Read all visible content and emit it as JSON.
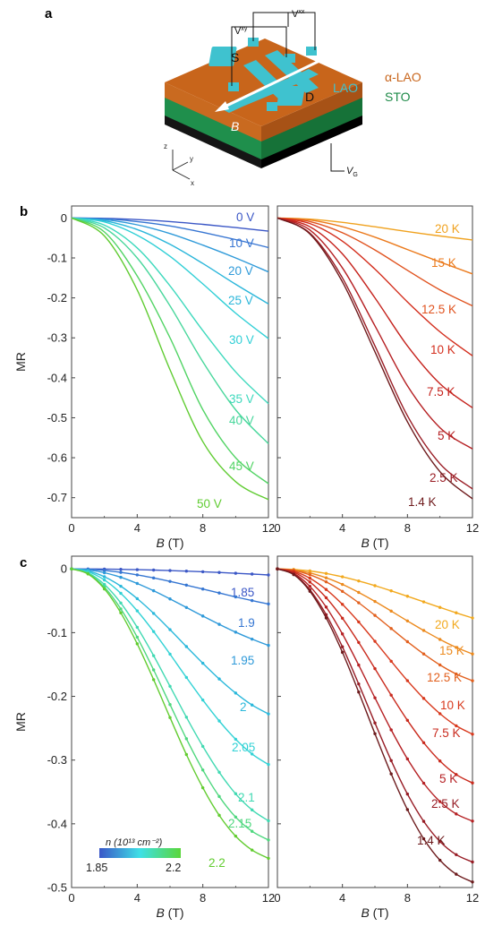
{
  "panel_letters": {
    "a": "a",
    "b": "b",
    "c": "c"
  },
  "schematic": {
    "source_label": "S",
    "drain_label": "D",
    "vxy_label": "V",
    "vxy_sup": "xy",
    "vxx_label": "V",
    "vxx_sup": "xx",
    "lao_label": "LAO",
    "alao_label": "α-LAO",
    "sto_label": "STO",
    "field_label": "B",
    "gate_label": "V",
    "gate_sub": "G",
    "axis_z": "z",
    "axis_y": "y",
    "axis_x": "x",
    "colors": {
      "alao": "#c8651b",
      "sto": "#1e8a48",
      "bar": "#3fc2cf",
      "base": "#151515"
    }
  },
  "colorbar": {
    "title": "n (10¹³ cm⁻²)",
    "min_label": "1.85",
    "max_label": "2.2",
    "colors": [
      "#3a56c8",
      "#3ee0e6",
      "#5ad63a"
    ]
  },
  "chart_data": [
    {
      "id": "b-left",
      "type": "line",
      "xlabel_italic": "B",
      "xlabel_unit": " (T)",
      "ylabel": "MR",
      "xlim": [
        0,
        12
      ],
      "ylim": [
        -0.75,
        0.03
      ],
      "xticks": [
        "0",
        "4",
        "8",
        "12"
      ],
      "xtick_values": [
        0,
        4,
        8,
        12
      ],
      "yticks": [
        "0",
        "-0.1",
        "-0.2",
        "-0.3",
        "-0.4",
        "-0.5",
        "-0.6",
        "-0.7"
      ],
      "ytick_values": [
        0,
        -0.1,
        -0.2,
        -0.3,
        -0.4,
        -0.5,
        -0.6,
        -0.7
      ],
      "markers": false,
      "series": [
        {
          "name": "0 V",
          "color": "#3b57c6",
          "x": [
            0,
            2,
            4,
            6,
            8,
            10,
            12
          ],
          "y": [
            0,
            -0.001,
            -0.004,
            -0.009,
            -0.016,
            -0.024,
            -0.033
          ]
        },
        {
          "name": "10 V",
          "color": "#3775d2",
          "x": [
            0,
            2,
            4,
            6,
            8,
            10,
            12
          ],
          "y": [
            0,
            -0.002,
            -0.009,
            -0.02,
            -0.036,
            -0.054,
            -0.074
          ]
        },
        {
          "name": "20 V",
          "color": "#2f9ad9",
          "x": [
            0,
            2,
            4,
            6,
            8,
            10,
            12
          ],
          "y": [
            0,
            -0.004,
            -0.017,
            -0.039,
            -0.068,
            -0.1,
            -0.135
          ]
        },
        {
          "name": "25 V",
          "color": "#2ab6da",
          "x": [
            0,
            2,
            4,
            6,
            8,
            10,
            12
          ],
          "y": [
            0,
            -0.007,
            -0.029,
            -0.066,
            -0.114,
            -0.166,
            -0.215
          ]
        },
        {
          "name": "30 V",
          "color": "#30cfd6",
          "x": [
            0,
            2,
            4,
            6,
            8,
            10,
            12
          ],
          "y": [
            0,
            -0.01,
            -0.043,
            -0.096,
            -0.165,
            -0.238,
            -0.302
          ]
        },
        {
          "name": "35 V",
          "color": "#3ed9bd",
          "x": [
            0,
            2,
            4,
            6,
            8,
            10,
            12
          ],
          "y": [
            0,
            -0.018,
            -0.075,
            -0.17,
            -0.282,
            -0.385,
            -0.465
          ]
        },
        {
          "name": "40 V",
          "color": "#49d79c",
          "x": [
            0,
            2,
            4,
            6,
            8,
            10,
            12
          ],
          "y": [
            0,
            -0.025,
            -0.1,
            -0.22,
            -0.36,
            -0.48,
            -0.565
          ]
        },
        {
          "name": "45 V",
          "color": "#52d465",
          "x": [
            0,
            2,
            4,
            6,
            8,
            10,
            12
          ],
          "y": [
            0,
            -0.035,
            -0.145,
            -0.3,
            -0.48,
            -0.6,
            -0.665
          ]
        },
        {
          "name": "50 V",
          "color": "#60cc32",
          "x": [
            0,
            2,
            4,
            6,
            8,
            10,
            12
          ],
          "y": [
            0,
            -0.045,
            -0.18,
            -0.38,
            -0.56,
            -0.66,
            -0.705
          ]
        }
      ]
    },
    {
      "id": "b-right",
      "type": "line",
      "xlabel_italic": "B",
      "xlabel_unit": " (T)",
      "ylabel": "",
      "xlim": [
        0,
        12
      ],
      "ylim": [
        -0.75,
        0.03
      ],
      "xticks": [
        "0",
        "4",
        "8",
        "12"
      ],
      "xtick_values": [
        0,
        4,
        8,
        12
      ],
      "yticks": [],
      "ytick_values": [
        0,
        -0.1,
        -0.2,
        -0.3,
        -0.4,
        -0.5,
        -0.6,
        -0.7
      ],
      "markers": false,
      "series": [
        {
          "name": "20 K",
          "color": "#f0a21f",
          "x": [
            0,
            2,
            4,
            6,
            8,
            10,
            12
          ],
          "y": [
            0,
            -0.003,
            -0.011,
            -0.022,
            -0.034,
            -0.045,
            -0.055
          ]
        },
        {
          "name": "15 K",
          "color": "#eb7a1c",
          "x": [
            0,
            2,
            4,
            6,
            8,
            10,
            12
          ],
          "y": [
            0,
            -0.005,
            -0.022,
            -0.048,
            -0.079,
            -0.11,
            -0.14
          ]
        },
        {
          "name": "12.5 K",
          "color": "#e0521e",
          "x": [
            0,
            2,
            4,
            6,
            8,
            10,
            12
          ],
          "y": [
            0,
            -0.009,
            -0.037,
            -0.08,
            -0.131,
            -0.18,
            -0.22
          ]
        },
        {
          "name": "10 K",
          "color": "#d32d1c",
          "x": [
            0,
            2,
            4,
            6,
            8,
            10,
            12
          ],
          "y": [
            0,
            -0.014,
            -0.058,
            -0.128,
            -0.21,
            -0.285,
            -0.345
          ]
        },
        {
          "name": "7.5 K",
          "color": "#c5221c",
          "x": [
            0,
            2,
            4,
            6,
            8,
            10,
            12
          ],
          "y": [
            0,
            -0.022,
            -0.09,
            -0.2,
            -0.32,
            -0.415,
            -0.475
          ]
        },
        {
          "name": "5 K",
          "color": "#b51f22",
          "x": [
            0,
            2,
            4,
            6,
            8,
            10,
            12
          ],
          "y": [
            0,
            -0.03,
            -0.125,
            -0.27,
            -0.42,
            -0.525,
            -0.578
          ]
        },
        {
          "name": "2.5 K",
          "color": "#9a1d25",
          "x": [
            0,
            2,
            4,
            6,
            8,
            10,
            12
          ],
          "y": [
            0,
            -0.038,
            -0.15,
            -0.32,
            -0.495,
            -0.615,
            -0.678
          ]
        },
        {
          "name": "1.4 K",
          "color": "#6e1a1c",
          "x": [
            0,
            2,
            4,
            6,
            8,
            10,
            12
          ],
          "y": [
            0,
            -0.04,
            -0.16,
            -0.335,
            -0.51,
            -0.635,
            -0.703
          ]
        }
      ]
    },
    {
      "id": "c-left",
      "type": "line",
      "xlabel_italic": "B",
      "xlabel_unit": " (T)",
      "ylabel": "MR",
      "xlim": [
        0,
        12
      ],
      "ylim": [
        -0.5,
        0.02
      ],
      "xticks": [
        "0",
        "4",
        "8",
        "12"
      ],
      "xtick_values": [
        0,
        4,
        8,
        12
      ],
      "yticks": [
        "0",
        "-0.1",
        "-0.2",
        "-0.3",
        "-0.4",
        "-0.5"
      ],
      "ytick_values": [
        0,
        -0.1,
        -0.2,
        -0.3,
        -0.4,
        -0.5
      ],
      "markers": true,
      "series": [
        {
          "name": "1.85",
          "color": "#3b57c6",
          "x": [
            0,
            1,
            2,
            3,
            4,
            5,
            6,
            7,
            8,
            9,
            10,
            11,
            12
          ],
          "y": [
            0,
            -0.0001,
            -0.0003,
            -0.0007,
            -0.0012,
            -0.0018,
            -0.0026,
            -0.0035,
            -0.0045,
            -0.0056,
            -0.0068,
            -0.0081,
            -0.0095
          ]
        },
        {
          "name": "1.9",
          "color": "#3576d2",
          "x": [
            0,
            1,
            2,
            3,
            4,
            5,
            6,
            7,
            8,
            9,
            10,
            11,
            12
          ],
          "y": [
            0,
            -0.0006,
            -0.0024,
            -0.0054,
            -0.0094,
            -0.0142,
            -0.0196,
            -0.0255,
            -0.0316,
            -0.0378,
            -0.0439,
            -0.0497,
            -0.055
          ]
        },
        {
          "name": "1.95",
          "color": "#2e99d9",
          "x": [
            0,
            1,
            2,
            3,
            4,
            5,
            6,
            7,
            8,
            9,
            10,
            11,
            12
          ],
          "y": [
            0,
            -0.0015,
            -0.006,
            -0.0132,
            -0.0228,
            -0.0343,
            -0.0471,
            -0.0605,
            -0.074,
            -0.087,
            -0.0992,
            -0.1102,
            -0.12
          ]
        },
        {
          "name": "2",
          "color": "#2ab8db",
          "x": [
            0,
            1,
            2,
            3,
            4,
            5,
            6,
            7,
            8,
            9,
            10,
            11,
            12
          ],
          "y": [
            0,
            -0.0031,
            -0.0123,
            -0.0271,
            -0.0466,
            -0.0698,
            -0.0953,
            -0.1219,
            -0.1481,
            -0.1727,
            -0.1948,
            -0.2136,
            -0.2276
          ]
        },
        {
          "name": "2.05",
          "color": "#32d2d5",
          "x": [
            0,
            1,
            2,
            3,
            4,
            5,
            6,
            7,
            8,
            9,
            10,
            11,
            12
          ],
          "y": [
            0,
            -0.0044,
            -0.0174,
            -0.0383,
            -0.0658,
            -0.0983,
            -0.1338,
            -0.1703,
            -0.2058,
            -0.2386,
            -0.2673,
            -0.2905,
            -0.3069
          ]
        },
        {
          "name": "2.1",
          "color": "#41d9b2",
          "x": [
            0,
            1,
            2,
            3,
            4,
            5,
            6,
            7,
            8,
            9,
            10,
            11,
            12
          ],
          "y": [
            0,
            -0.0061,
            -0.0244,
            -0.0535,
            -0.0916,
            -0.1362,
            -0.1842,
            -0.2327,
            -0.2785,
            -0.3191,
            -0.3528,
            -0.3782,
            -0.3953
          ]
        },
        {
          "name": "2.15",
          "color": "#4ed77e",
          "x": [
            0,
            1,
            2,
            3,
            4,
            5,
            6,
            7,
            8,
            9,
            10,
            11,
            12
          ],
          "y": [
            0,
            -0.0072,
            -0.0287,
            -0.0628,
            -0.1071,
            -0.1585,
            -0.2129,
            -0.2665,
            -0.3156,
            -0.3571,
            -0.3894,
            -0.4118,
            -0.4254
          ]
        },
        {
          "name": "2.2",
          "color": "#62cc30",
          "x": [
            0,
            1,
            2,
            3,
            4,
            5,
            6,
            7,
            8,
            9,
            10,
            11,
            12
          ],
          "y": [
            0,
            -0.0079,
            -0.0314,
            -0.0689,
            -0.1175,
            -0.1738,
            -0.2333,
            -0.2913,
            -0.3435,
            -0.3867,
            -0.4193,
            -0.4412,
            -0.4542
          ]
        }
      ]
    },
    {
      "id": "c-right",
      "type": "line",
      "xlabel_italic": "B",
      "xlabel_unit": " (T)",
      "ylabel": "",
      "xlim": [
        0,
        12
      ],
      "ylim": [
        -0.5,
        0.02
      ],
      "xticks": [
        "0",
        "4",
        "8",
        "12"
      ],
      "xtick_values": [
        0,
        4,
        8,
        12
      ],
      "yticks": [],
      "ytick_values": [
        0,
        -0.1,
        -0.2,
        -0.3,
        -0.4,
        -0.5
      ],
      "markers": true,
      "series": [
        {
          "name": "20 K",
          "color": "#f2a91e",
          "x": [
            0,
            1,
            2,
            3,
            4,
            5,
            6,
            7,
            8,
            9,
            10,
            11,
            12
          ],
          "y": [
            0,
            -0.0008,
            -0.0032,
            -0.0071,
            -0.0124,
            -0.0189,
            -0.0263,
            -0.0344,
            -0.0429,
            -0.0517,
            -0.0604,
            -0.0689,
            -0.077
          ]
        },
        {
          "name": "15 K",
          "color": "#ec8a1e",
          "x": [
            0,
            1,
            2,
            3,
            4,
            5,
            6,
            7,
            8,
            9,
            10,
            11,
            12
          ],
          "y": [
            0,
            -0.0016,
            -0.0063,
            -0.014,
            -0.0243,
            -0.0369,
            -0.051,
            -0.0662,
            -0.0816,
            -0.0966,
            -0.1107,
            -0.1232,
            -0.1335
          ]
        },
        {
          "name": "12.5 K",
          "color": "#e2601e",
          "x": [
            0,
            1,
            2,
            3,
            4,
            5,
            6,
            7,
            8,
            9,
            10,
            11,
            12
          ],
          "y": [
            0,
            -0.0023,
            -0.0092,
            -0.0203,
            -0.0352,
            -0.0531,
            -0.0729,
            -0.0936,
            -0.1142,
            -0.1335,
            -0.1507,
            -0.1649,
            -0.1755
          ]
        },
        {
          "name": "10 K",
          "color": "#d8391d",
          "x": [
            0,
            1,
            2,
            3,
            4,
            5,
            6,
            7,
            8,
            9,
            10,
            11,
            12
          ],
          "y": [
            0,
            -0.0037,
            -0.0146,
            -0.0323,
            -0.0556,
            -0.0832,
            -0.1136,
            -0.1449,
            -0.1754,
            -0.2032,
            -0.2272,
            -0.2462,
            -0.2594
          ]
        },
        {
          "name": "7.5 K",
          "color": "#c92a1d",
          "x": [
            0,
            1,
            2,
            3,
            4,
            5,
            6,
            7,
            8,
            9,
            10,
            11,
            12
          ],
          "y": [
            0,
            -0.0052,
            -0.0205,
            -0.0452,
            -0.0774,
            -0.1153,
            -0.1565,
            -0.1981,
            -0.2376,
            -0.2727,
            -0.3014,
            -0.3227,
            -0.3359
          ]
        },
        {
          "name": "5 K",
          "color": "#b52023",
          "x": [
            0,
            1,
            2,
            3,
            4,
            5,
            6,
            7,
            8,
            9,
            10,
            11,
            12
          ],
          "y": [
            0,
            -0.0069,
            -0.0274,
            -0.0599,
            -0.1021,
            -0.1509,
            -0.2023,
            -0.2526,
            -0.2982,
            -0.3363,
            -0.3651,
            -0.3845,
            -0.3957
          ]
        },
        {
          "name": "2.5 K",
          "color": "#971c25",
          "x": [
            0,
            1,
            2,
            3,
            4,
            5,
            6,
            7,
            8,
            9,
            10,
            11,
            12
          ],
          "y": [
            0,
            -0.0083,
            -0.0328,
            -0.0718,
            -0.1223,
            -0.1805,
            -0.2417,
            -0.3008,
            -0.3533,
            -0.3961,
            -0.4278,
            -0.4484,
            -0.4599
          ]
        },
        {
          "name": "1.4 K",
          "color": "#6c1a1c",
          "x": [
            0,
            1,
            2,
            3,
            4,
            5,
            6,
            7,
            8,
            9,
            10,
            11,
            12
          ],
          "y": [
            0,
            -0.0089,
            -0.0351,
            -0.0769,
            -0.1309,
            -0.1932,
            -0.2586,
            -0.3217,
            -0.3777,
            -0.4235,
            -0.4572,
            -0.4791,
            -0.4913
          ]
        }
      ]
    }
  ]
}
